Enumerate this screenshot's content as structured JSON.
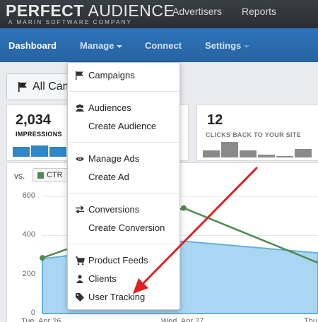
{
  "brand": {
    "name_bold": "PERFECT",
    "name_rest": " AUDIENCE",
    "tagline": "A MARIN SOFTWARE COMPANY"
  },
  "toplinks": [
    "Advertisers",
    "Reports"
  ],
  "nav": {
    "dashboard": "Dashboard",
    "manage": "Manage",
    "connect": "Connect",
    "settings": "Settings"
  },
  "campaign_filter": {
    "label": "All Cam"
  },
  "stats": {
    "impressions": {
      "value": "2,034",
      "label": "IMPRESSIONS"
    },
    "clicks": {
      "value": "12",
      "label": "CLICKS BACK TO YOUR SITE"
    }
  },
  "compare": {
    "vs": "vs.",
    "metric": "CTR"
  },
  "menu": [
    {
      "label": "Campaigns",
      "icon": "flag-icon"
    },
    {
      "label": "Audiences",
      "icon": "users-icon"
    },
    {
      "label": "Create Audience",
      "icon": ""
    },
    {
      "label": "Manage Ads",
      "icon": "eye-icon"
    },
    {
      "label": "Create Ad",
      "icon": ""
    },
    {
      "label": "Conversions",
      "icon": "exchange-icon"
    },
    {
      "label": "Create Conversion",
      "icon": ""
    },
    {
      "label": "Product Feeds",
      "icon": "cart-icon"
    },
    {
      "label": "Clients",
      "icon": "user-icon"
    },
    {
      "label": "User Tracking",
      "icon": "tag-icon"
    }
  ],
  "chart_data": {
    "type": "area",
    "y_ticks": [
      "600",
      "400",
      "200",
      "0"
    ],
    "x_ticks": [
      "Tue, Apr 26",
      "Wed, Apr 27",
      "Thu"
    ],
    "ylim": [
      0,
      600
    ],
    "series": [
      {
        "values": [
          280,
          370,
          310
        ],
        "color": "#7fbfe6"
      },
      {
        "values": [
          285,
          540,
          260
        ],
        "color": "#4e8a4e"
      }
    ]
  },
  "colors": {
    "accent": "#2d73b8",
    "arrow": "#e02020"
  }
}
